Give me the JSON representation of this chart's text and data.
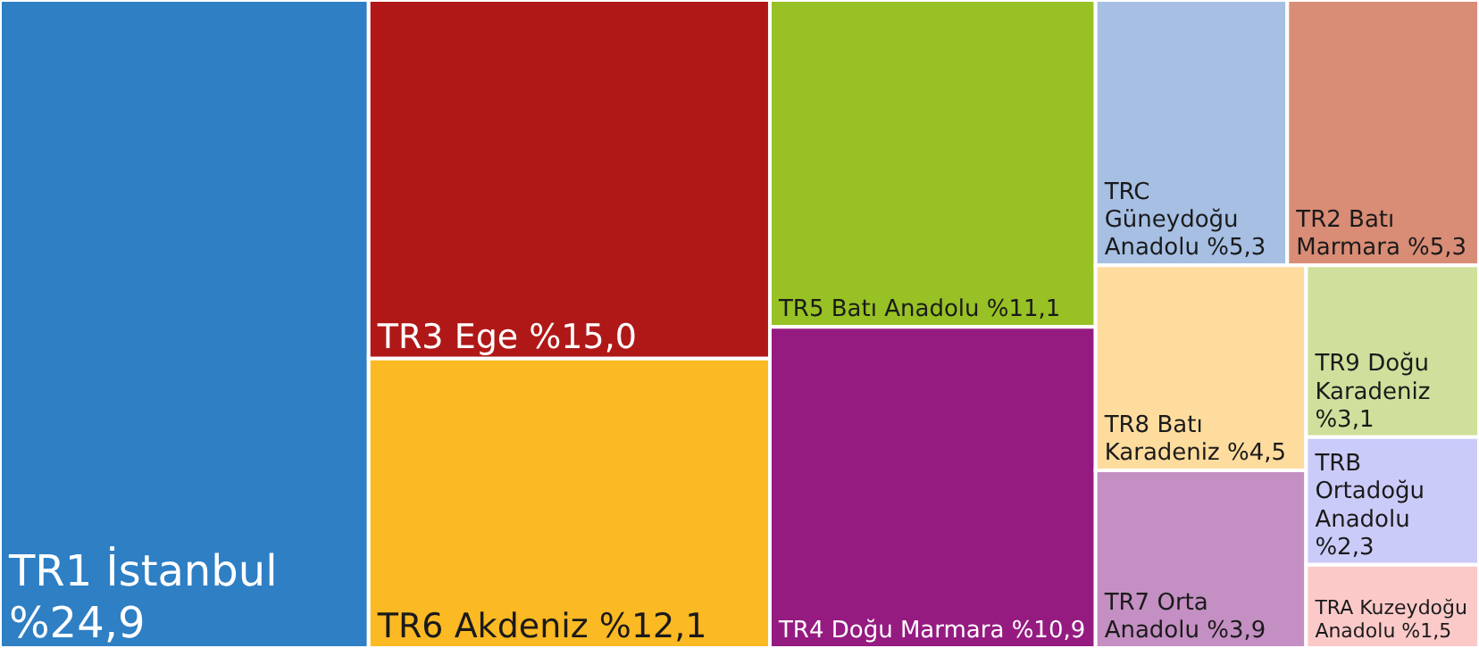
{
  "chart_data": {
    "type": "other",
    "categories": [
      "TR1 İstanbul",
      "TR3 Ege",
      "TR6 Akdeniz",
      "TR5 Batı Anadolu",
      "TR4 Doğu Marmara",
      "TRC Güneydoğu Anadolu",
      "TR2 Batı Marmara",
      "TR8 Batı Karadeniz",
      "TR7 Orta Anadolu",
      "TR9 Doğu Karadeniz",
      "TRB Ortadoğu Anadolu",
      "TRA Kuzeydoğu Anadolu"
    ],
    "values": [
      24.9,
      15.0,
      12.1,
      11.1,
      10.9,
      5.3,
      5.3,
      4.5,
      3.9,
      3.1,
      2.3,
      1.5
    ],
    "value_labels": [
      "%24,9",
      "%15,0",
      "%12,1",
      "%11,1",
      "%10,9",
      "%5,3",
      "%5,3",
      "%4,5",
      "%3,9",
      "%3,1",
      "%2,3",
      "%1,5"
    ],
    "colors": [
      "#2e7fc4",
      "#b01818",
      "#fbb923",
      "#97c124",
      "#951b81",
      "#a6bfe3",
      "#d98c76",
      "#fddc9e",
      "#c48fc2",
      "#cfe09c",
      "#cbcbfa",
      "#fcc9c9"
    ]
  }
}
